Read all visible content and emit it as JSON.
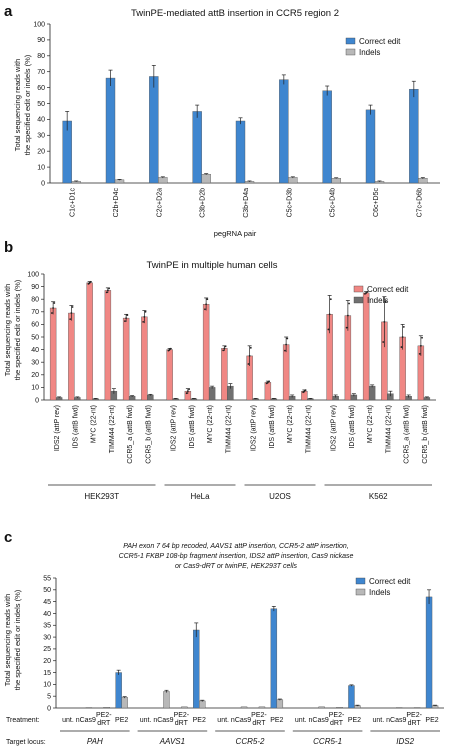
{
  "panels": {
    "a": {
      "letter": "a",
      "title": "TwinPE-mediated attB insertion in CCR5 region 2",
      "ylabel_line1": "Total sequencing reads with",
      "ylabel_line2": "the specified edit or indels (%)",
      "xlabel": "pegRNA pair"
    },
    "b": {
      "letter": "b",
      "title": "TwinPE in multiple human cells",
      "ylabel_line1": "Total sequencing reads with",
      "ylabel_line2": "the specified edit or indels (%)"
    },
    "c": {
      "letter": "c",
      "caption_lines": [
        "PAH exon 7 64 bp recoded, AAVS1 attP insertion, CCR5-2 attP insertion,",
        "CCR5-1 FKBP 108-bp fragment insertion, IDS2 attP insertion, Cas9 nickase",
        "or Cas9-dRT or twinPE, HEK293T cells"
      ],
      "ylabel_line1": "Total sequencing reads with",
      "ylabel_line2": "the specified edit or indels (%)",
      "treatment_label": "Treatment:",
      "target_label": "Target locus:"
    }
  },
  "colors": {
    "blue": "#3f86cf",
    "gray": "#b8b8b8",
    "red": "#f08784",
    "darkgray": "#707070"
  },
  "chart_data": [
    {
      "type": "bar",
      "categories": [
        "C1c+D1c",
        "C2b+D4c",
        "C2c+D2a",
        "C3b+D2b",
        "C3b+D4a",
        "C5c+D3b",
        "C5c+D4b",
        "C6c+D5c",
        "C7c+D6b"
      ],
      "series": [
        {
          "name": "Correct edit",
          "values": [
            39,
            66,
            67,
            45,
            39,
            65,
            58,
            46,
            59
          ],
          "errors": [
            6,
            5,
            7,
            4,
            2,
            3,
            3,
            3,
            5
          ]
        },
        {
          "name": "Indels",
          "values": [
            1.0,
            2.0,
            3.5,
            5.5,
            1.0,
            3.5,
            3.0,
            1.0,
            3.0
          ],
          "errors": [
            0.3,
            0.3,
            0.4,
            0.4,
            0.3,
            0.4,
            0.3,
            0.3,
            0.4
          ]
        }
      ],
      "title": "TwinPE-mediated attB insertion in CCR5 region 2",
      "xlabel": "pegRNA pair",
      "ylabel": "Total sequencing reads with the specified edit or indels (%)",
      "ylim": [
        0,
        100
      ],
      "yticks": [
        "0",
        "10",
        "20",
        "30",
        "40",
        "50",
        "60",
        "70",
        "80",
        "90",
        "100"
      ],
      "legend": "top-right"
    },
    {
      "type": "bar",
      "categories": [
        "IDS2 (attP rev)",
        "IDS (attB fwd)",
        "MYC (22-nt)",
        "TIMM44 (22-nt)",
        "CCR5_a (attB fwd)",
        "CCR5_b (attB fwd)",
        "IDS2 (attP rev)",
        "IDS (attB fwd)",
        "MYC (22-nt)",
        "TIMM44 (22-nt)",
        "IDS2 (attP rev)",
        "IDS (attB fwd)",
        "MYC (22-nt)",
        "TIMM44 (22-nt)",
        "IDS2 (attP rev)",
        "IDS (attB fwd)",
        "MYC (22-nt)",
        "TIMM44 (22-nt)",
        "CCR5_a (attB fwd)",
        "CCR5_b (attB fwd)"
      ],
      "groups": [
        {
          "name": "HEK293T",
          "start": 0,
          "end": 5
        },
        {
          "name": "HeLa",
          "start": 6,
          "end": 9
        },
        {
          "name": "U2OS",
          "start": 10,
          "end": 13
        },
        {
          "name": "K562",
          "start": 14,
          "end": 19
        }
      ],
      "series": [
        {
          "name": "Correct edit",
          "values": [
            73,
            69,
            93,
            87,
            65,
            66,
            40,
            7,
            76,
            41,
            35,
            14,
            44,
            7,
            68,
            67,
            85,
            62,
            50,
            43
          ],
          "errors": [
            5,
            6,
            1,
            2,
            3,
            5,
            1,
            2,
            5,
            2,
            8,
            1,
            6,
            1,
            15,
            12,
            1,
            20,
            10,
            8
          ]
        },
        {
          "name": "Indels",
          "values": [
            2,
            2,
            1,
            7,
            3,
            4,
            1,
            1,
            10,
            11,
            1,
            1,
            3,
            1,
            3,
            4,
            11,
            5,
            3,
            2
          ],
          "errors": [
            0.5,
            0.5,
            0.3,
            2,
            0.5,
            0.5,
            0.3,
            0.3,
            1,
            2,
            0.3,
            0.3,
            1,
            0.3,
            1,
            1,
            1,
            2,
            1,
            0.5
          ]
        }
      ],
      "title": "TwinPE in multiple human cells",
      "ylabel": "Total sequencing reads with the specified edit or indels (%)",
      "ylim": [
        0,
        100
      ],
      "yticks": [
        "0",
        "10",
        "20",
        "30",
        "40",
        "50",
        "60",
        "70",
        "80",
        "90",
        "100"
      ],
      "legend": "top-right"
    },
    {
      "type": "bar",
      "categories": [
        "unt.",
        "nCas9",
        "PE2-dRT",
        "PE2",
        "unt.",
        "nCas9",
        "PE2-dRT",
        "PE2",
        "unt.",
        "nCas9",
        "PE2-dRT",
        "PE2",
        "unt.",
        "nCas9",
        "PE2-dRT",
        "PE2",
        "unt.",
        "nCas9",
        "PE2-dRT",
        "PE2"
      ],
      "groups": [
        {
          "name": "PAH",
          "start": 0,
          "end": 3
        },
        {
          "name": "AAVS1",
          "start": 4,
          "end": 7
        },
        {
          "name": "CCR5-2",
          "start": 8,
          "end": 11
        },
        {
          "name": "CCR5-1",
          "start": 12,
          "end": 15
        },
        {
          "name": "IDS2",
          "start": 16,
          "end": 19
        }
      ],
      "series": [
        {
          "name": "Correct edit",
          "values": [
            0,
            0,
            0,
            15,
            0,
            0,
            0,
            33,
            0,
            0,
            0,
            42,
            0,
            0,
            0,
            9.5,
            0,
            0,
            0,
            47
          ],
          "errors": [
            0,
            0,
            0,
            1,
            0,
            0,
            0,
            3,
            0,
            0,
            0,
            1,
            0,
            0,
            0,
            0.3,
            0,
            0,
            0,
            3
          ]
        },
        {
          "name": "Indels",
          "values": [
            0,
            0.2,
            0.3,
            4.5,
            0,
            7,
            0.5,
            3,
            0,
            0.5,
            0.5,
            3.5,
            0,
            0.5,
            0.3,
            1,
            0,
            0.2,
            0.2,
            1
          ],
          "errors": [
            0,
            0,
            0,
            0.3,
            0,
            0.5,
            0,
            0.3,
            0,
            0,
            0,
            0.3,
            0,
            0,
            0,
            0.2,
            0,
            0,
            0,
            0.2
          ]
        }
      ],
      "ylabel": "Total sequencing reads with the specified edit or indels (%)",
      "ylim": [
        0,
        55
      ],
      "yticks": [
        "0",
        "5",
        "10",
        "15",
        "20",
        "25",
        "30",
        "35",
        "40",
        "45",
        "50",
        "55"
      ],
      "legend": "top-right"
    }
  ]
}
